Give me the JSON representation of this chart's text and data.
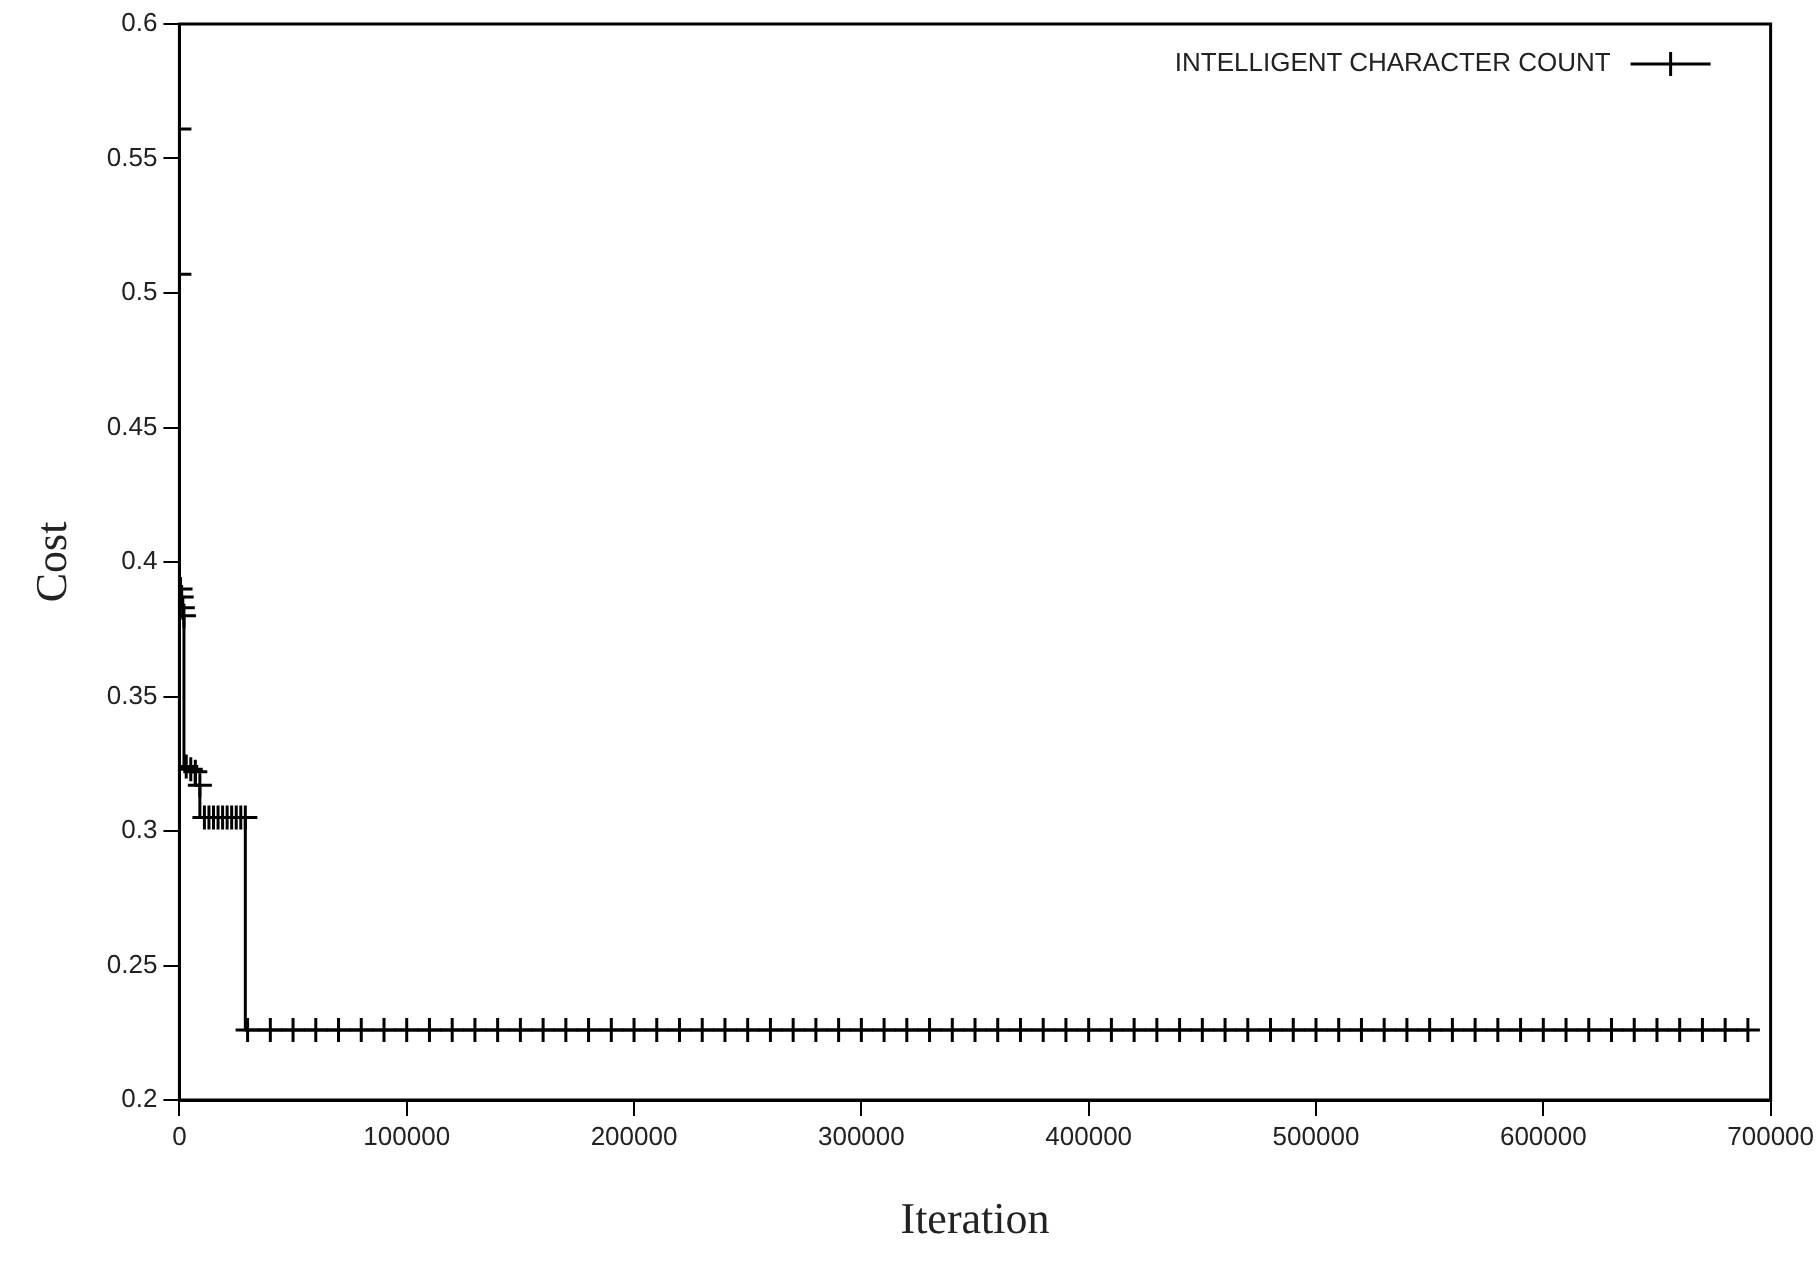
{
  "chart_data": {
    "type": "step",
    "xlabel": "Iteration",
    "ylabel": "Cost",
    "xlim": [
      0,
      700000
    ],
    "ylim": [
      0.2,
      0.6
    ],
    "xticks": [
      0,
      100000,
      200000,
      300000,
      400000,
      500000,
      600000,
      700000
    ],
    "yticks": [
      0.2,
      0.25,
      0.3,
      0.35,
      0.4,
      0.45,
      0.5,
      0.55,
      0.6
    ],
    "legend": "top right",
    "marker": "cross",
    "grid": false,
    "series": [
      {
        "name": "INTELLIGENT CHARACTER COUNT",
        "color": "#000000",
        "x": [
          0,
          0,
          500,
          1000,
          1500,
          2000,
          3000,
          5000,
          7000,
          9000,
          11000,
          13000,
          15000,
          17000,
          19000,
          21000,
          23000,
          25000,
          27000,
          29000,
          30000,
          40000,
          50000,
          60000,
          70000,
          80000,
          90000,
          100000,
          110000,
          120000,
          130000,
          140000,
          150000,
          160000,
          170000,
          180000,
          190000,
          200000,
          210000,
          220000,
          230000,
          240000,
          250000,
          260000,
          270000,
          280000,
          290000,
          300000,
          310000,
          320000,
          330000,
          340000,
          350000,
          360000,
          370000,
          380000,
          390000,
          400000,
          410000,
          420000,
          430000,
          440000,
          450000,
          460000,
          470000,
          480000,
          490000,
          500000,
          510000,
          520000,
          530000,
          540000,
          550000,
          560000,
          570000,
          580000,
          590000,
          600000,
          610000,
          620000,
          630000,
          640000,
          650000,
          660000,
          670000,
          680000,
          690000
        ],
        "values": [
          0.561,
          0.507,
          0.39,
          0.387,
          0.383,
          0.38,
          0.324,
          0.323,
          0.322,
          0.317,
          0.305,
          0.305,
          0.305,
          0.305,
          0.305,
          0.305,
          0.305,
          0.305,
          0.305,
          0.305,
          0.226,
          0.226,
          0.226,
          0.226,
          0.226,
          0.226,
          0.226,
          0.226,
          0.226,
          0.226,
          0.226,
          0.226,
          0.226,
          0.226,
          0.226,
          0.226,
          0.226,
          0.226,
          0.226,
          0.226,
          0.226,
          0.226,
          0.226,
          0.226,
          0.226,
          0.226,
          0.226,
          0.226,
          0.226,
          0.226,
          0.226,
          0.226,
          0.226,
          0.226,
          0.226,
          0.226,
          0.226,
          0.226,
          0.226,
          0.226,
          0.226,
          0.226,
          0.226,
          0.226,
          0.226,
          0.226,
          0.226,
          0.226,
          0.226,
          0.226,
          0.226,
          0.226,
          0.226,
          0.226,
          0.226,
          0.226,
          0.226,
          0.226,
          0.226,
          0.226,
          0.226,
          0.226,
          0.226,
          0.226,
          0.226,
          0.226,
          0.226
        ]
      }
    ]
  }
}
